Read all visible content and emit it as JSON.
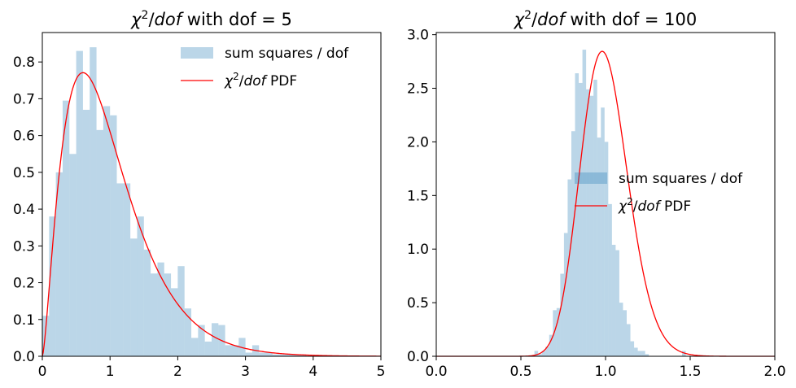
{
  "chart_data": [
    {
      "type": "histogram+line",
      "title_prefix": "χ",
      "title_sup": "2",
      "title_slash": "/",
      "title_italic": "dof",
      "title_suffix": " with dof = 5",
      "xlim": [
        0,
        5
      ],
      "ylim": [
        0,
        0.88
      ],
      "x_ticks": [
        0,
        1,
        2,
        3,
        4,
        5
      ],
      "x_tick_labels": [
        "0",
        "1",
        "2",
        "3",
        "4",
        "5"
      ],
      "y_ticks": [
        0,
        0.1,
        0.2,
        0.3,
        0.4,
        0.5,
        0.6,
        0.7,
        0.8
      ],
      "y_tick_labels": [
        "0.0",
        "0.1",
        "0.2",
        "0.3",
        "0.4",
        "0.5",
        "0.6",
        "0.7",
        "0.8"
      ],
      "legend_position": "top-right",
      "legend": {
        "hist_label": "sum squares / dof",
        "pdf_prefix": "χ",
        "pdf_sup": "2",
        "pdf_slash": "/",
        "pdf_italic": "dof",
        "pdf_suffix": " PDF"
      },
      "colors": {
        "hist": "#1f77b4",
        "pdf": "#ff0000"
      },
      "hist_alpha": 0.3,
      "bins": {
        "start": 0.0,
        "width": 0.1,
        "heights": [
          0.11,
          0.38,
          0.5,
          0.695,
          0.55,
          0.83,
          0.67,
          0.84,
          0.615,
          0.68,
          0.655,
          0.47,
          0.47,
          0.32,
          0.38,
          0.29,
          0.225,
          0.255,
          0.225,
          0.185,
          0.245,
          0.13,
          0.05,
          0.085,
          0.04,
          0.09,
          0.085,
          0.03,
          0.03,
          0.05,
          0.01,
          0.03,
          0.01,
          0.01,
          0.005,
          0.005,
          0.005,
          0.005,
          0.005,
          0.0,
          0.0,
          0.0,
          0.0,
          0.0,
          0.0,
          0.0,
          0.0,
          0.0,
          0.0,
          0.0
        ]
      },
      "pdf_dof": 5
    },
    {
      "type": "histogram+line",
      "title_prefix": "χ",
      "title_sup": "2",
      "title_slash": "/",
      "title_italic": "dof",
      "title_suffix": " with dof = 100",
      "xlim": [
        0,
        2
      ],
      "ylim": [
        0,
        3.02
      ],
      "x_ticks": [
        0,
        0.5,
        1.0,
        1.5,
        2.0
      ],
      "x_tick_labels": [
        "0.0",
        "0.5",
        "1.0",
        "1.5",
        "2.0"
      ],
      "y_ticks": [
        0,
        0.5,
        1.0,
        1.5,
        2.0,
        2.5,
        3.0
      ],
      "y_tick_labels": [
        "0.0",
        "0.5",
        "1.0",
        "1.5",
        "2.0",
        "2.5",
        "3.0"
      ],
      "legend_position": "center-right",
      "legend": {
        "hist_label": "sum squares / dof",
        "pdf_prefix": "χ",
        "pdf_sup": "2",
        "pdf_slash": "/",
        "pdf_italic": "dof",
        "pdf_suffix": " PDF"
      },
      "colors": {
        "hist": "#1f77b4",
        "pdf": "#ff0000"
      },
      "hist_alpha": 0.3,
      "bins": {
        "start": 0.58,
        "width": 0.0218,
        "heights": [
          0.05,
          0.02,
          0.05,
          0.09,
          0.2,
          0.43,
          0.45,
          0.77,
          1.15,
          1.65,
          2.1,
          2.64,
          2.55,
          2.86,
          2.49,
          2.43,
          2.58,
          2.04,
          2.32,
          2.0,
          1.42,
          1.04,
          0.99,
          0.5,
          0.43,
          0.3,
          0.14,
          0.08,
          0.05,
          0.05,
          0.02,
          0.0,
          0.0,
          0.0,
          0.0,
          0.0,
          0.0,
          0.0,
          0.0,
          0.0,
          0.05
        ]
      },
      "pdf_dof": 100
    }
  ]
}
